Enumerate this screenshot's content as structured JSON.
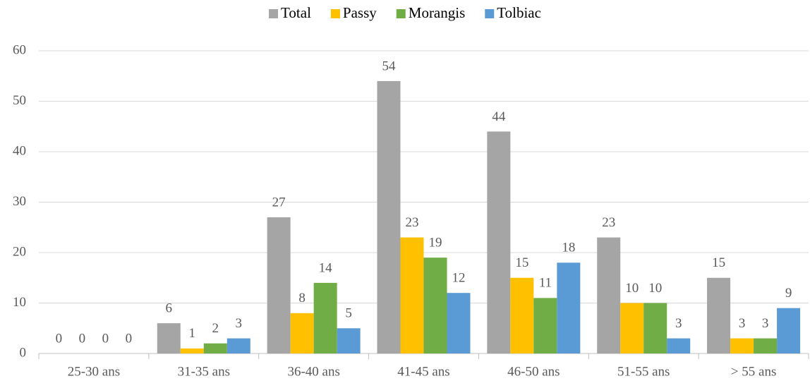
{
  "chart_data": {
    "type": "bar",
    "categories": [
      "25-30 ans",
      "31-35 ans",
      "36-40 ans",
      "41-45 ans",
      "46-50 ans",
      "51-55 ans",
      "> 55 ans"
    ],
    "series": [
      {
        "name": "Total",
        "color": "#a5a5a5",
        "values": [
          0,
          6,
          27,
          54,
          44,
          23,
          15
        ]
      },
      {
        "name": "Passy",
        "color": "#ffc000",
        "values": [
          0,
          1,
          8,
          23,
          15,
          10,
          3
        ]
      },
      {
        "name": "Morangis",
        "color": "#70ad47",
        "values": [
          0,
          2,
          14,
          19,
          11,
          10,
          3
        ]
      },
      {
        "name": "Tolbiac",
        "color": "#5b9bd5",
        "values": [
          0,
          3,
          5,
          12,
          18,
          3,
          9
        ]
      }
    ],
    "ylim": [
      0,
      60
    ],
    "yticks": [
      0,
      10,
      20,
      30,
      40,
      50,
      60
    ],
    "grid": true,
    "legend": "top"
  }
}
